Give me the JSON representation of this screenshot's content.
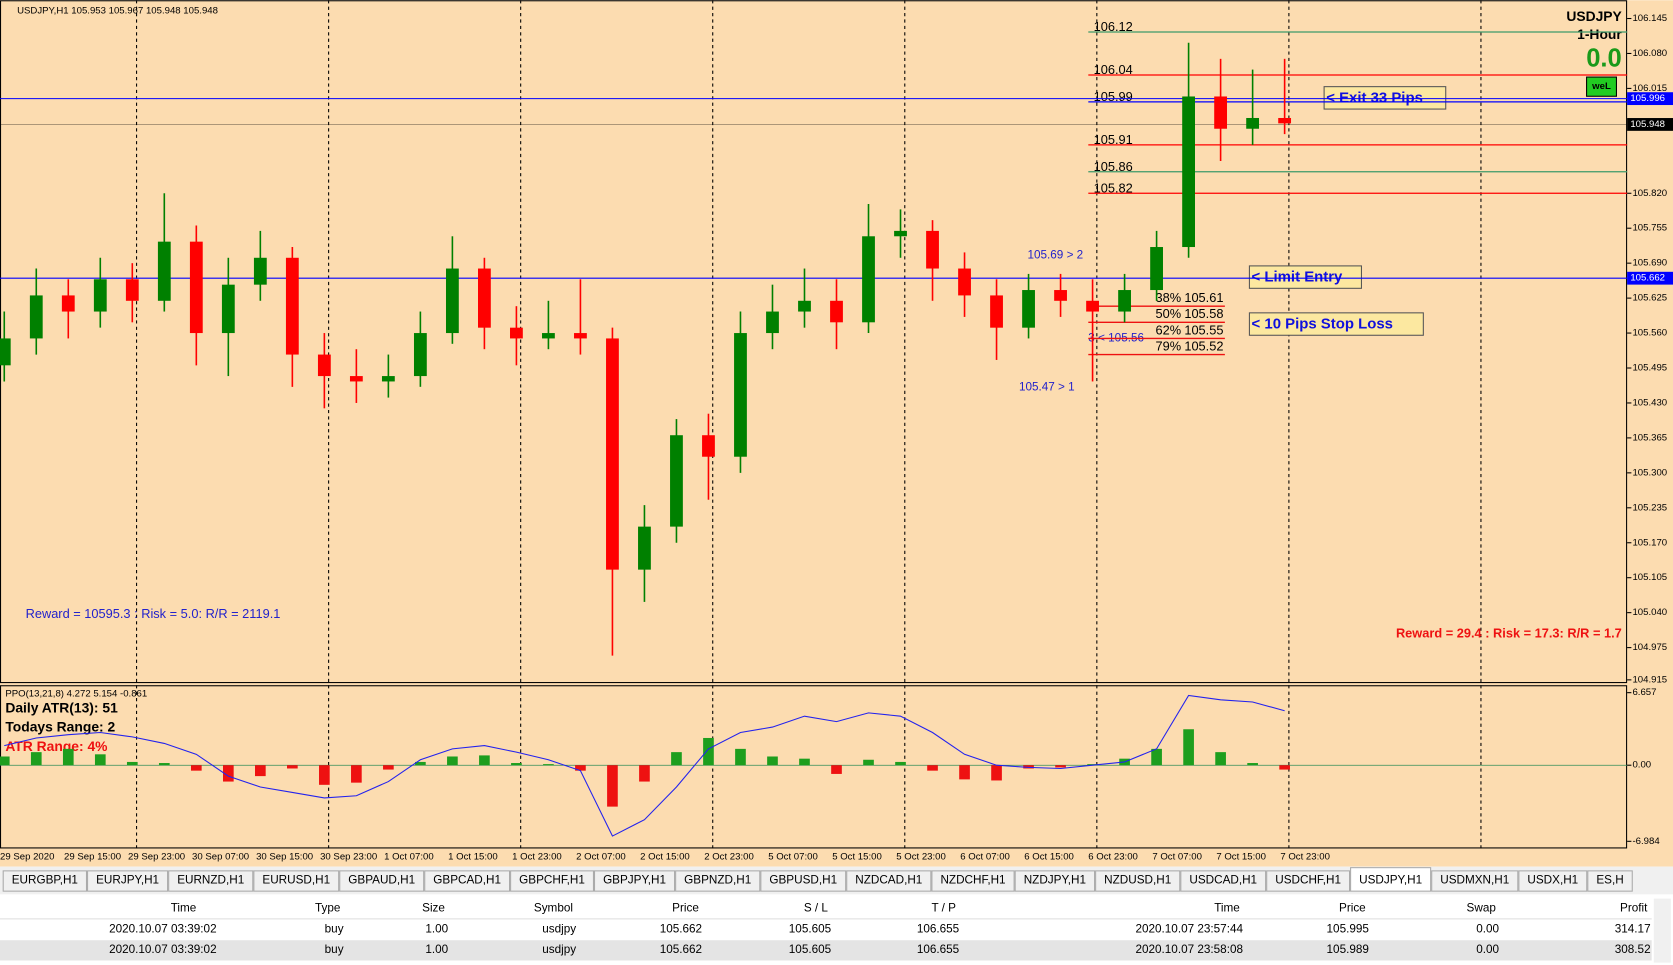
{
  "chart": {
    "symbol_info": "USDJPY,H1  105.953 105.967 105.948 105.948",
    "symbol": "USDJPY",
    "timeframe": "1-Hour",
    "pips": "0.0",
    "badge": "weL",
    "ylim": [
      104.909,
      106.179
    ],
    "yticks": [
      106.145,
      {
        "value": 106.08,
        "label": "106.080"
      },
      106.015,
      {
        "value": 105.82,
        "label": "105.820"
      },
      105.755,
      {
        "value": 105.69,
        "label": "105.690"
      },
      105.625,
      {
        "value": 105.56,
        "label": "105.560"
      },
      105.495,
      {
        "value": 105.43,
        "label": "105.430"
      },
      105.365,
      {
        "value": 105.3,
        "label": "105.300"
      },
      105.235,
      {
        "value": 105.17,
        "label": "105.170"
      },
      105.105,
      {
        "value": 105.04,
        "label": "105.040"
      },
      104.975,
      104.915
    ],
    "price_markers": [
      {
        "value": 105.996,
        "color": "#0000ff"
      },
      {
        "value": 105.948,
        "color": "#000000"
      },
      {
        "value": 105.662,
        "color": "#0000ff"
      }
    ],
    "levels": [
      {
        "value": 106.12,
        "color": "#3c9a6a"
      },
      {
        "value": 106.04,
        "color": "#ff0000"
      },
      {
        "value": 105.99,
        "color": "#0000ff"
      },
      {
        "value": 105.91,
        "color": "#ff0000"
      },
      {
        "value": 105.86,
        "color": "#3c9a6a"
      },
      {
        "value": 105.82,
        "color": "#ff0000"
      }
    ],
    "fib": [
      {
        "label": "38%",
        "value": 105.61
      },
      {
        "label": "50%",
        "value": 105.58
      },
      {
        "label": "62%",
        "value": 105.55
      },
      {
        "label": "79%",
        "value": 105.52
      }
    ],
    "annotations": [
      "105.69 > 2",
      "105.47 > 1",
      "3 < 105.56"
    ],
    "boxes": [
      "< Exit 33 Pips",
      "< Limit Entry",
      "< 10 Pips Stop Loss"
    ],
    "reward_left": "Reward = 10595.3 : Risk = 5.0: R/R = 2119.1",
    "reward_right": "Reward = 29.4 : Risk = 17.3: R/R = 1.7",
    "x_labels": [
      "29 Sep 2020",
      "29 Sep 15:00",
      "29 Sep 23:00",
      "30 Sep 07:00",
      "30 Sep 15:00",
      "30 Sep 23:00",
      "1 Oct 07:00",
      "1 Oct 15:00",
      "1 Oct 23:00",
      "2 Oct 07:00",
      "2 Oct 15:00",
      "2 Oct 23:00",
      "5 Oct 07:00",
      "5 Oct 15:00",
      "5 Oct 23:00",
      "6 Oct 07:00",
      "6 Oct 15:00",
      "6 Oct 23:00",
      "7 Oct 07:00",
      "7 Oct 15:00",
      "7 Oct 23:00"
    ],
    "candles": [
      [
        105.5,
        105.6,
        105.47,
        105.55
      ],
      [
        105.55,
        105.68,
        105.52,
        105.63
      ],
      [
        105.63,
        105.66,
        105.55,
        105.6
      ],
      [
        105.6,
        105.7,
        105.57,
        105.66
      ],
      [
        105.66,
        105.69,
        105.58,
        105.62
      ],
      [
        105.62,
        105.82,
        105.6,
        105.73
      ],
      [
        105.73,
        105.76,
        105.5,
        105.56
      ],
      [
        105.56,
        105.7,
        105.48,
        105.65
      ],
      [
        105.65,
        105.75,
        105.62,
        105.7
      ],
      [
        105.7,
        105.72,
        105.46,
        105.52
      ],
      [
        105.52,
        105.56,
        105.42,
        105.48
      ],
      [
        105.48,
        105.53,
        105.43,
        105.47
      ],
      [
        105.47,
        105.52,
        105.44,
        105.48
      ],
      [
        105.48,
        105.6,
        105.46,
        105.56
      ],
      [
        105.56,
        105.74,
        105.54,
        105.68
      ],
      [
        105.68,
        105.7,
        105.53,
        105.57
      ],
      [
        105.57,
        105.61,
        105.5,
        105.55
      ],
      [
        105.55,
        105.62,
        105.53,
        105.56
      ],
      [
        105.56,
        105.66,
        105.52,
        105.55
      ],
      [
        105.55,
        105.57,
        104.96,
        105.12
      ],
      [
        105.12,
        105.24,
        105.06,
        105.2
      ],
      [
        105.2,
        105.4,
        105.17,
        105.37
      ],
      [
        105.37,
        105.41,
        105.25,
        105.33
      ],
      [
        105.33,
        105.6,
        105.3,
        105.56
      ],
      [
        105.56,
        105.65,
        105.53,
        105.6
      ],
      [
        105.6,
        105.68,
        105.57,
        105.62
      ],
      [
        105.62,
        105.66,
        105.53,
        105.58
      ],
      [
        105.58,
        105.8,
        105.56,
        105.74
      ],
      [
        105.74,
        105.79,
        105.7,
        105.75
      ],
      [
        105.75,
        105.77,
        105.62,
        105.68
      ],
      [
        105.68,
        105.71,
        105.59,
        105.63
      ],
      [
        105.63,
        105.66,
        105.51,
        105.57
      ],
      [
        105.57,
        105.67,
        105.55,
        105.64
      ],
      [
        105.64,
        105.67,
        105.59,
        105.62
      ],
      [
        105.62,
        105.66,
        105.47,
        105.6
      ],
      [
        105.6,
        105.67,
        105.58,
        105.64
      ],
      [
        105.64,
        105.75,
        105.62,
        105.72
      ],
      [
        105.72,
        106.1,
        105.7,
        106.0
      ],
      [
        106.0,
        106.07,
        105.88,
        105.94
      ],
      [
        105.94,
        106.05,
        105.91,
        105.96
      ],
      [
        105.96,
        106.07,
        105.93,
        105.95
      ]
    ]
  },
  "indicator": {
    "label": "PPO(13,21,8) 4.272 5.154 -0.861",
    "atr": "Daily ATR(13): 51",
    "range": "Todays Range: 2",
    "atr_range": "ATR Range: 4%",
    "ylim": [
      -7.64,
      7.34
    ],
    "yticks": [
      6.657,
      {
        "value": 0,
        "label": "0.00"
      },
      -6.984
    ],
    "histogram": [
      0.8,
      1.2,
      1.5,
      1.0,
      0.3,
      0.2,
      -0.5,
      -1.5,
      -1.0,
      -0.3,
      -1.8,
      -1.6,
      -0.4,
      0.3,
      0.8,
      0.9,
      0.2,
      0.1,
      -0.5,
      -3.8,
      -1.5,
      1.2,
      2.5,
      1.5,
      0.8,
      0.6,
      -0.8,
      0.5,
      0.3,
      -0.5,
      -1.3,
      -1.4,
      -0.3,
      -0.2,
      0.1,
      0.6,
      1.5,
      3.3,
      1.2,
      0.2,
      -0.4
    ],
    "line": [
      1.8,
      2.5,
      2.8,
      3.0,
      2.6,
      2.0,
      1.0,
      -1.0,
      -2.0,
      -2.5,
      -3.0,
      -2.8,
      -1.5,
      0.5,
      1.5,
      1.8,
      1.2,
      0.5,
      -0.5,
      -6.5,
      -5.0,
      -2.0,
      1.5,
      3.0,
      3.5,
      4.5,
      4.0,
      4.8,
      4.5,
      3.0,
      1.0,
      0,
      -0.2,
      -0.3,
      0,
      0.3,
      1.5,
      6.4,
      6.0,
      5.8,
      5.0
    ]
  },
  "tabs": {
    "items": [
      "EURGBP,H1",
      "EURJPY,H1",
      "EURNZD,H1",
      "EURUSD,H1",
      "GBPAUD,H1",
      "GBPCAD,H1",
      "GBPCHF,H1",
      "GBPJPY,H1",
      "GBPNZD,H1",
      "GBPUSD,H1",
      "NZDCAD,H1",
      "NZDCHF,H1",
      "NZDJPY,H1",
      "NZDUSD,H1",
      "USDCAD,H1",
      "USDCHF,H1",
      "USDJPY,H1",
      "USDMXN,H1",
      "USDX,H1",
      "ES,H"
    ],
    "active": 16
  },
  "table": {
    "headers": [
      "Time",
      "Type",
      "Size",
      "Symbol",
      "Price",
      "S / L",
      "T / P",
      "Time",
      "Price",
      "Swap",
      "Profit"
    ],
    "rows": [
      [
        "2020.10.07 03:39:02",
        "buy",
        "1.00",
        "usdjpy",
        "105.662",
        "105.605",
        "106.655",
        "2020.10.07 23:57:44",
        "105.995",
        "0.00",
        "314.17"
      ],
      [
        "2020.10.07 03:39:02",
        "buy",
        "1.00",
        "usdjpy",
        "105.662",
        "105.605",
        "106.655",
        "2020.10.07 23:58:08",
        "105.989",
        "0.00",
        "308.52"
      ]
    ]
  }
}
